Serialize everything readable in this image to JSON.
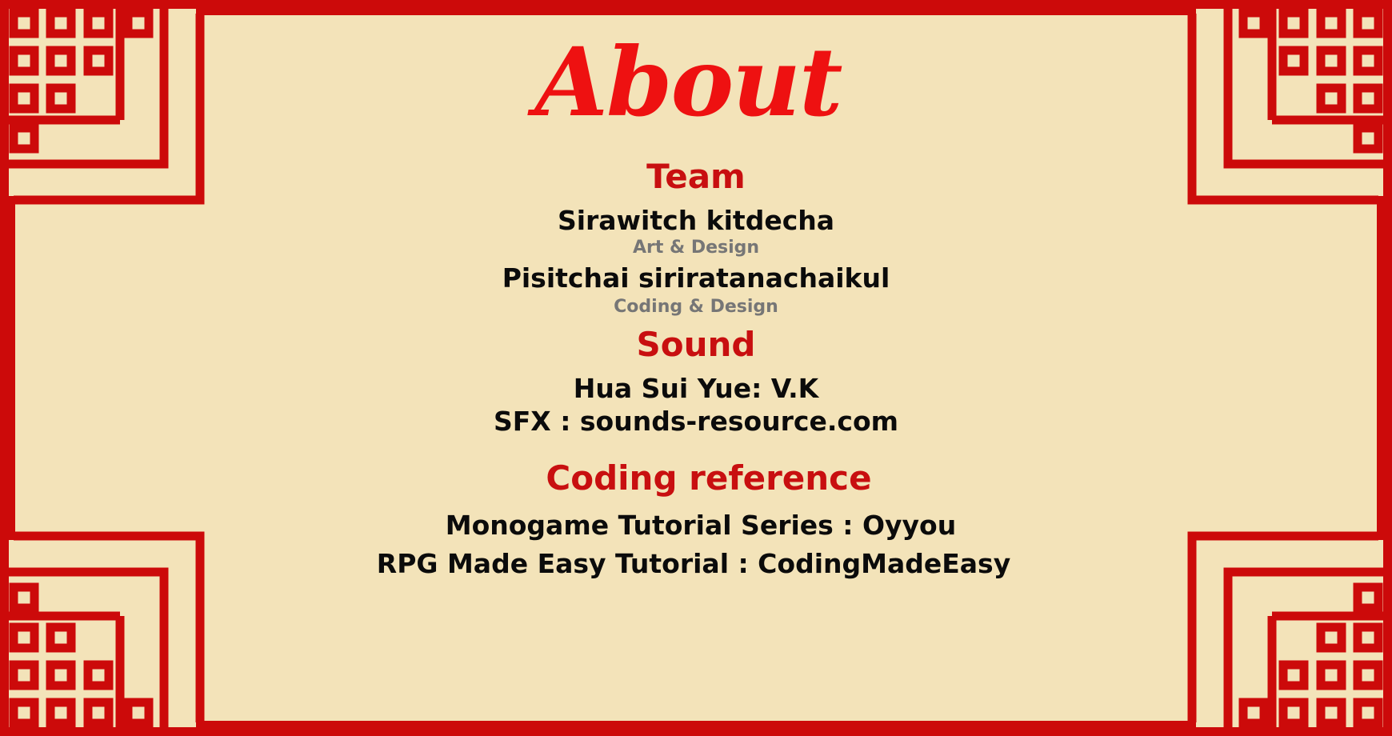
{
  "title": "About",
  "team": {
    "heading": "Team",
    "members": [
      {
        "name": "Sirawitch kitdecha",
        "role": "Art & Design"
      },
      {
        "name": "Pisitchai siriratanachaikul",
        "role": "Coding & Design"
      }
    ]
  },
  "sound": {
    "heading": "Sound",
    "credits": [
      "Hua Sui Yue: V.K",
      "SFX : sounds-resource.com"
    ]
  },
  "coding": {
    "heading": "Coding reference",
    "credits": [
      "Monogame Tutorial Series : Oyyou",
      "RPG Made Easy Tutorial : CodingMadeEasy"
    ]
  },
  "colors": {
    "background": "#f3e3b9",
    "border": "#cc0a0a",
    "title": "#ee1111",
    "heading": "#c80f10",
    "body": "#0b0b0b",
    "role": "#767676"
  }
}
